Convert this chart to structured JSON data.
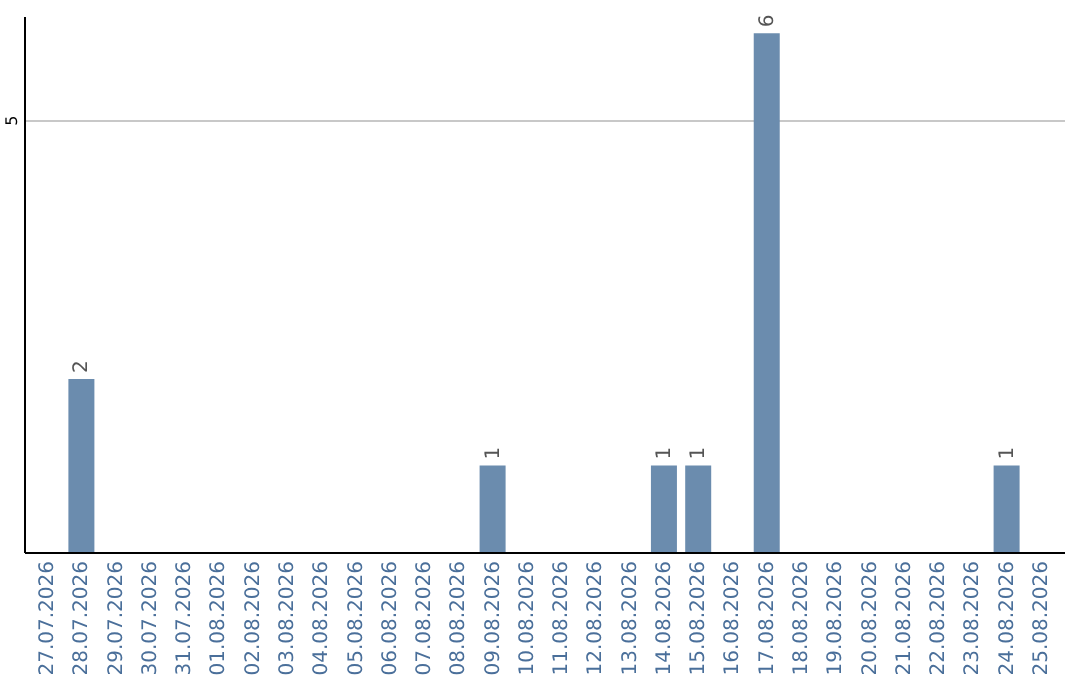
{
  "chart_data": {
    "type": "bar",
    "categories": [
      "27.07.2026",
      "28.07.2026",
      "29.07.2026",
      "30.07.2026",
      "31.07.2026",
      "01.08.2026",
      "02.08.2026",
      "03.08.2026",
      "04.08.2026",
      "05.08.2026",
      "06.08.2026",
      "07.08.2026",
      "08.08.2026",
      "09.08.2026",
      "10.08.2026",
      "11.08.2026",
      "12.08.2026",
      "13.08.2026",
      "14.08.2026",
      "15.08.2026",
      "16.08.2026",
      "17.08.2026",
      "18.08.2026",
      "19.08.2026",
      "20.08.2026",
      "21.08.2026",
      "22.08.2026",
      "23.08.2026",
      "24.08.2026",
      "25.08.2026"
    ],
    "values": [
      0,
      2,
      0,
      0,
      0,
      0,
      0,
      0,
      0,
      0,
      0,
      0,
      0,
      1,
      0,
      0,
      0,
      0,
      1,
      1,
      0,
      6,
      0,
      0,
      0,
      0,
      0,
      0,
      1,
      0
    ],
    "value_labels": [
      null,
      "2",
      null,
      null,
      null,
      null,
      null,
      null,
      null,
      null,
      null,
      null,
      null,
      "1",
      null,
      null,
      null,
      null,
      "1",
      "1",
      null,
      "6",
      null,
      null,
      null,
      null,
      null,
      null,
      "1",
      null
    ],
    "color": "#6b8cae",
    "ylim": [
      0,
      6.2
    ],
    "yticks": [
      5
    ],
    "grid": "y"
  }
}
